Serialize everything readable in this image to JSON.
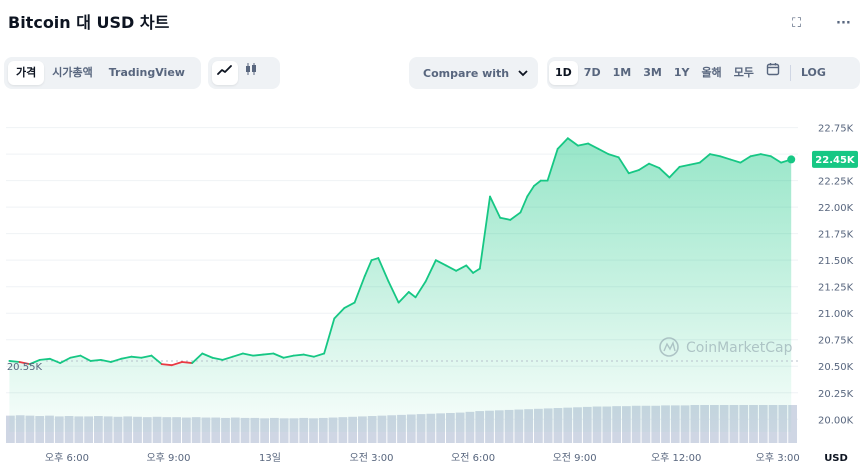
{
  "header": {
    "title": "Bitcoin 대 USD 차트",
    "fullscreen_icon": "⛶",
    "more_icon": "···"
  },
  "toolbar": {
    "view_tabs": [
      "가격",
      "시가총액",
      "TradingView"
    ],
    "active_view": "가격",
    "chart_type_icons": [
      "line-chart-icon",
      "candlestick-icon"
    ],
    "compare_label": "Compare with",
    "compare_chevron": "⌄",
    "ranges": [
      "1D",
      "7D",
      "1M",
      "3M",
      "1Y",
      "올해",
      "모두"
    ],
    "active_range": "1D",
    "calendar_icon": "calendar-icon",
    "log_label": "LOG"
  },
  "colors": {
    "up": "#16c784",
    "down": "#ea3943",
    "volume": "#cfd6e4",
    "grid": "#eff2f5",
    "price_tag": "#16c784"
  },
  "chart_data": {
    "type": "area",
    "y_ticks": [
      "22.75K",
      "22.50K",
      "22.25K",
      "22.00K",
      "21.75K",
      "21.50K",
      "21.25K",
      "21.00K",
      "20.75K",
      "20.50K",
      "20.25K",
      "20.00K"
    ],
    "y_tick_values": [
      22750,
      22500,
      22250,
      22000,
      21750,
      21500,
      21250,
      21000,
      20750,
      20500,
      20250,
      20000
    ],
    "x_ticks": [
      "오후 6:00",
      "오후 9:00",
      "13일",
      "오전 3:00",
      "오전 6:00",
      "오전 9:00",
      "오후 12:00",
      "오후 3:00"
    ],
    "x_tick_hours": [
      18,
      21,
      24,
      27,
      30,
      33,
      36,
      39
    ],
    "x_range_hours": [
      16.2,
      39.6
    ],
    "ylim": [
      19880,
      22850
    ],
    "y_unit": "USD",
    "open_price": 20550,
    "open_label": "20.55K",
    "current_label": "22.45K",
    "watermark": "CoinMarketCap",
    "series": [
      {
        "x": [
          16.3,
          16.6,
          16.9,
          17.2,
          17.5,
          17.8,
          18.1,
          18.4,
          18.7,
          19.0,
          19.3,
          19.6,
          19.9,
          20.2,
          20.5,
          20.8,
          21.1,
          21.4,
          21.7,
          22.0,
          22.3,
          22.6,
          22.9,
          23.2,
          23.5,
          23.8,
          24.1,
          24.4,
          24.7,
          25.0,
          25.3,
          25.6,
          25.9,
          26.2,
          26.5,
          26.8,
          27.0,
          27.2,
          27.5,
          27.8,
          28.1,
          28.3,
          28.6,
          28.9,
          29.2,
          29.5,
          29.8,
          30.0,
          30.2,
          30.5,
          30.8,
          31.1,
          31.4,
          31.6,
          31.8,
          32.0,
          32.2,
          32.5,
          32.8,
          33.1,
          33.4,
          33.7,
          34.0,
          34.3,
          34.6,
          34.9,
          35.2,
          35.5,
          35.8,
          36.1,
          36.4,
          36.7,
          37.0,
          37.3,
          37.6,
          37.9,
          38.2,
          38.5,
          38.8,
          39.1,
          39.4
        ],
        "y": [
          20550,
          20540,
          20520,
          20560,
          20570,
          20530,
          20580,
          20600,
          20550,
          20560,
          20540,
          20570,
          20590,
          20580,
          20600,
          20520,
          20510,
          20540,
          20530,
          20620,
          20580,
          20560,
          20590,
          20620,
          20600,
          20610,
          20620,
          20580,
          20600,
          20610,
          20590,
          20620,
          20950,
          21050,
          21100,
          21350,
          21500,
          21520,
          21300,
          21100,
          21200,
          21150,
          21300,
          21500,
          21450,
          21400,
          21450,
          21380,
          21420,
          22100,
          21900,
          21880,
          21950,
          22100,
          22200,
          22250,
          22250,
          22550,
          22650,
          22580,
          22600,
          22550,
          22500,
          22470,
          22320,
          22350,
          22410,
          22370,
          22280,
          22380,
          22400,
          22420,
          22500,
          22480,
          22450,
          22420,
          22480,
          22500,
          22480,
          22420,
          22450
        ]
      }
    ],
    "volume": [
      0.72,
      0.73,
      0.72,
      0.71,
      0.72,
      0.7,
      0.71,
      0.7,
      0.7,
      0.71,
      0.7,
      0.69,
      0.7,
      0.69,
      0.68,
      0.69,
      0.68,
      0.68,
      0.67,
      0.68,
      0.67,
      0.67,
      0.66,
      0.67,
      0.66,
      0.66,
      0.65,
      0.66,
      0.65,
      0.65,
      0.66,
      0.65,
      0.66,
      0.67,
      0.68,
      0.69,
      0.7,
      0.71,
      0.72,
      0.73,
      0.74,
      0.75,
      0.76,
      0.77,
      0.78,
      0.79,
      0.8,
      0.82,
      0.84,
      0.85,
      0.86,
      0.87,
      0.88,
      0.89,
      0.9,
      0.91,
      0.92,
      0.93,
      0.94,
      0.95,
      0.96,
      0.96,
      0.97,
      0.97,
      0.98,
      0.98,
      0.98,
      0.99,
      0.99,
      0.99,
      1.0,
      1.0,
      1.0,
      1.0,
      1.0,
      1.0,
      1.0,
      1.0,
      1.0,
      1.0,
      1.0
    ]
  }
}
